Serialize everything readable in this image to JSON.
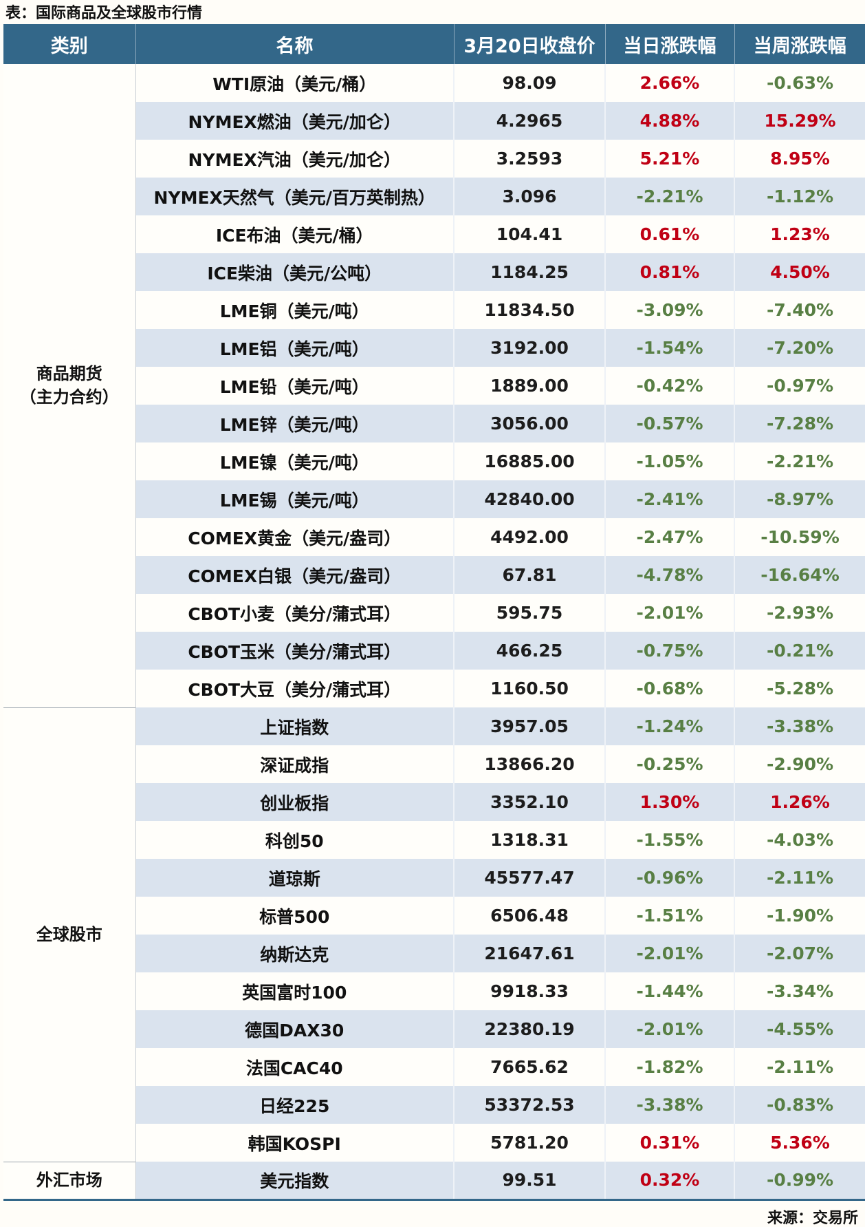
{
  "chart_data": {
    "type": "table",
    "title": "表：国际商品及全球股市行情",
    "source": "来源：交易所",
    "columns": [
      "类别",
      "名称",
      "3月20日收盘价",
      "当日涨跌幅",
      "当周涨跌幅"
    ],
    "colors": {
      "header_bg": "#336789",
      "header_text": "#ffffff",
      "row_bg": "#fffefa",
      "row_alt_bg": "#dae3ee",
      "up": "#c00014",
      "down": "#587f44"
    },
    "sections": [
      {
        "category": "商品期货（主力合约）",
        "category_lines": [
          "商品期货",
          "（主力合约）"
        ],
        "rows": [
          {
            "name": "WTI原油（美元/桶）",
            "close": "98.09",
            "day": "2.66%",
            "week": "-0.63%"
          },
          {
            "name": "NYMEX燃油（美元/加仑）",
            "close": "4.2965",
            "day": "4.88%",
            "week": "15.29%"
          },
          {
            "name": "NYMEX汽油（美元/加仑）",
            "close": "3.2593",
            "day": "5.21%",
            "week": "8.95%"
          },
          {
            "name": "NYMEX天然气（美元/百万英制热）",
            "close": "3.096",
            "day": "-2.21%",
            "week": "-1.12%"
          },
          {
            "name": "ICE布油（美元/桶）",
            "close": "104.41",
            "day": "0.61%",
            "week": "1.23%"
          },
          {
            "name": "ICE柴油（美元/公吨）",
            "close": "1184.25",
            "day": "0.81%",
            "week": "4.50%"
          },
          {
            "name": "LME铜（美元/吨）",
            "close": "11834.50",
            "day": "-3.09%",
            "week": "-7.40%"
          },
          {
            "name": "LME铝（美元/吨）",
            "close": "3192.00",
            "day": "-1.54%",
            "week": "-7.20%"
          },
          {
            "name": "LME铅（美元/吨）",
            "close": "1889.00",
            "day": "-0.42%",
            "week": "-0.97%"
          },
          {
            "name": "LME锌（美元/吨）",
            "close": "3056.00",
            "day": "-0.57%",
            "week": "-7.28%"
          },
          {
            "name": "LME镍（美元/吨）",
            "close": "16885.00",
            "day": "-1.05%",
            "week": "-2.21%"
          },
          {
            "name": "LME锡（美元/吨）",
            "close": "42840.00",
            "day": "-2.41%",
            "week": "-8.97%"
          },
          {
            "name": "COMEX黄金（美元/盎司）",
            "close": "4492.00",
            "day": "-2.47%",
            "week": "-10.59%"
          },
          {
            "name": "COMEX白银（美元/盎司）",
            "close": "67.81",
            "day": "-4.78%",
            "week": "-16.64%"
          },
          {
            "name": "CBOT小麦（美分/蒲式耳）",
            "close": "595.75",
            "day": "-2.01%",
            "week": "-2.93%"
          },
          {
            "name": "CBOT玉米（美分/蒲式耳）",
            "close": "466.25",
            "day": "-0.75%",
            "week": "-0.21%"
          },
          {
            "name": "CBOT大豆（美分/蒲式耳）",
            "close": "1160.50",
            "day": "-0.68%",
            "week": "-5.28%"
          }
        ]
      },
      {
        "category": "全球股市",
        "category_lines": [
          "全球股市"
        ],
        "rows": [
          {
            "name": "上证指数",
            "close": "3957.05",
            "day": "-1.24%",
            "week": "-3.38%"
          },
          {
            "name": "深证成指",
            "close": "13866.20",
            "day": "-0.25%",
            "week": "-2.90%"
          },
          {
            "name": "创业板指",
            "close": "3352.10",
            "day": "1.30%",
            "week": "1.26%"
          },
          {
            "name": "科创50",
            "close": "1318.31",
            "day": "-1.55%",
            "week": "-4.03%"
          },
          {
            "name": "道琼斯",
            "close": "45577.47",
            "day": "-0.96%",
            "week": "-2.11%"
          },
          {
            "name": "标普500",
            "close": "6506.48",
            "day": "-1.51%",
            "week": "-1.90%"
          },
          {
            "name": "纳斯达克",
            "close": "21647.61",
            "day": "-2.01%",
            "week": "-2.07%"
          },
          {
            "name": "英国富时100",
            "close": "9918.33",
            "day": "-1.44%",
            "week": "-3.34%"
          },
          {
            "name": "德国DAX30",
            "close": "22380.19",
            "day": "-2.01%",
            "week": "-4.55%"
          },
          {
            "name": "法国CAC40",
            "close": "7665.62",
            "day": "-1.82%",
            "week": "-2.11%"
          },
          {
            "name": "日经225",
            "close": "53372.53",
            "day": "-3.38%",
            "week": "-0.83%"
          },
          {
            "name": "韩国KOSPI",
            "close": "5781.20",
            "day": "0.31%",
            "week": "5.36%"
          }
        ]
      },
      {
        "category": "外汇市场",
        "category_lines": [
          "外汇市场"
        ],
        "rows": [
          {
            "name": "美元指数",
            "close": "99.51",
            "day": "0.32%",
            "week": "-0.99%"
          }
        ]
      }
    ]
  }
}
